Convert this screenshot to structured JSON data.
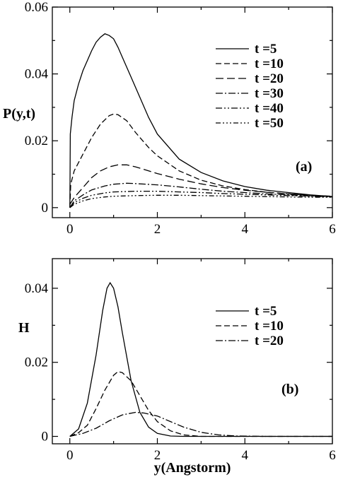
{
  "chart_data": [
    {
      "type": "line",
      "panel_label": "(a)",
      "xlabel": "",
      "ylabel": "P(y,t)",
      "xlim": [
        -0.4,
        6
      ],
      "ylim": [
        -0.003,
        0.06
      ],
      "xticks": [
        0,
        2,
        4,
        6
      ],
      "xtick_labels": [
        "0",
        "2",
        "4",
        "6"
      ],
      "yticks": [
        0,
        0.02,
        0.04,
        0.06
      ],
      "ytick_labels": [
        "0",
        "0.02",
        "0.04",
        "0.06"
      ],
      "legend_position": "top-right",
      "grid": false,
      "series": [
        {
          "name": "t =5",
          "dash": "solid",
          "points": [
            [
              0.0,
              0.0
            ],
            [
              0.01,
              0.022
            ],
            [
              0.05,
              0.027
            ],
            [
              0.1,
              0.032
            ],
            [
              0.2,
              0.037
            ],
            [
              0.3,
              0.041
            ],
            [
              0.4,
              0.044
            ],
            [
              0.5,
              0.047
            ],
            [
              0.6,
              0.0495
            ],
            [
              0.7,
              0.051
            ],
            [
              0.8,
              0.052
            ],
            [
              0.9,
              0.0515
            ],
            [
              1.0,
              0.0505
            ],
            [
              1.1,
              0.048
            ],
            [
              1.2,
              0.045
            ],
            [
              1.4,
              0.039
            ],
            [
              1.6,
              0.033
            ],
            [
              1.8,
              0.027
            ],
            [
              2.0,
              0.022
            ],
            [
              2.5,
              0.0145
            ],
            [
              3.0,
              0.0105
            ],
            [
              3.5,
              0.008
            ],
            [
              4.0,
              0.0063
            ],
            [
              4.5,
              0.0052
            ],
            [
              5.0,
              0.0045
            ],
            [
              5.5,
              0.0038
            ],
            [
              6.0,
              0.0033
            ]
          ]
        },
        {
          "name": "t =10",
          "dash": "8,4",
          "points": [
            [
              0.0,
              0.0
            ],
            [
              0.02,
              0.007
            ],
            [
              0.1,
              0.011
            ],
            [
              0.3,
              0.016
            ],
            [
              0.5,
              0.021
            ],
            [
              0.7,
              0.025
            ],
            [
              0.9,
              0.0275
            ],
            [
              1.0,
              0.028
            ],
            [
              1.1,
              0.0278
            ],
            [
              1.3,
              0.026
            ],
            [
              1.5,
              0.0225
            ],
            [
              1.8,
              0.018
            ],
            [
              2.0,
              0.0155
            ],
            [
              2.5,
              0.011
            ],
            [
              3.0,
              0.0082
            ],
            [
              3.5,
              0.0065
            ],
            [
              4.0,
              0.0054
            ],
            [
              4.5,
              0.0046
            ],
            [
              5.0,
              0.0041
            ],
            [
              5.5,
              0.0037
            ],
            [
              6.0,
              0.0033
            ]
          ]
        },
        {
          "name": "t =20",
          "dash": "11,5",
          "points": [
            [
              0.0,
              0.001
            ],
            [
              0.1,
              0.003
            ],
            [
              0.3,
              0.006
            ],
            [
              0.5,
              0.009
            ],
            [
              0.7,
              0.011
            ],
            [
              0.9,
              0.0122
            ],
            [
              1.1,
              0.0128
            ],
            [
              1.3,
              0.0128
            ],
            [
              1.5,
              0.0122
            ],
            [
              1.8,
              0.011
            ],
            [
              2.0,
              0.0102
            ],
            [
              2.5,
              0.0085
            ],
            [
              3.0,
              0.0071
            ],
            [
              3.5,
              0.006
            ],
            [
              4.0,
              0.0052
            ],
            [
              4.5,
              0.0046
            ],
            [
              5.0,
              0.0041
            ],
            [
              5.5,
              0.0037
            ],
            [
              6.0,
              0.0034
            ]
          ]
        },
        {
          "name": "t =30",
          "dash": "10,3,2,3",
          "points": [
            [
              0.0,
              0.0
            ],
            [
              0.1,
              0.002
            ],
            [
              0.3,
              0.0038
            ],
            [
              0.5,
              0.0053
            ],
            [
              0.8,
              0.0065
            ],
            [
              1.0,
              0.007
            ],
            [
              1.3,
              0.0073
            ],
            [
              1.5,
              0.0072
            ],
            [
              2.0,
              0.0068
            ],
            [
              2.5,
              0.0062
            ],
            [
              3.0,
              0.0055
            ],
            [
              3.5,
              0.0049
            ],
            [
              4.0,
              0.0045
            ],
            [
              4.5,
              0.0041
            ],
            [
              5.0,
              0.0038
            ],
            [
              5.5,
              0.0035
            ],
            [
              6.0,
              0.0032
            ]
          ]
        },
        {
          "name": "t =40",
          "dash": "9,3,2,3,2,3",
          "points": [
            [
              0.0,
              0.0
            ],
            [
              0.1,
              0.0015
            ],
            [
              0.3,
              0.0028
            ],
            [
              0.5,
              0.0037
            ],
            [
              0.8,
              0.0044
            ],
            [
              1.0,
              0.0047
            ],
            [
              1.5,
              0.0049
            ],
            [
              2.0,
              0.0049
            ],
            [
              2.5,
              0.0047
            ],
            [
              3.0,
              0.0045
            ],
            [
              3.5,
              0.0042
            ],
            [
              4.0,
              0.004
            ],
            [
              4.5,
              0.0038
            ],
            [
              5.0,
              0.0036
            ],
            [
              5.5,
              0.0034
            ],
            [
              6.0,
              0.0032
            ]
          ]
        },
        {
          "name": "t =50",
          "dash": "7,3,2,3,2,3,2,3",
          "points": [
            [
              0.0,
              0.0
            ],
            [
              0.1,
              0.001
            ],
            [
              0.3,
              0.002
            ],
            [
              0.5,
              0.0027
            ],
            [
              0.8,
              0.0032
            ],
            [
              1.0,
              0.0034
            ],
            [
              1.5,
              0.0036
            ],
            [
              2.0,
              0.0037
            ],
            [
              2.5,
              0.0037
            ],
            [
              3.0,
              0.0036
            ],
            [
              3.5,
              0.0035
            ],
            [
              4.0,
              0.0034
            ],
            [
              4.5,
              0.0033
            ],
            [
              5.0,
              0.0032
            ],
            [
              5.5,
              0.0031
            ],
            [
              6.0,
              0.0031
            ]
          ]
        }
      ]
    },
    {
      "type": "line",
      "panel_label": "(b)",
      "xlabel": "y(Angstorm)",
      "ylabel": "H",
      "xlim": [
        -0.4,
        6
      ],
      "ylim": [
        -0.002,
        0.048
      ],
      "xticks": [
        0,
        2,
        4,
        6
      ],
      "xtick_labels": [
        "0",
        "2",
        "4",
        "6"
      ],
      "yticks": [
        0,
        0.02,
        0.04
      ],
      "ytick_labels": [
        "0",
        "0.02",
        "0.04"
      ],
      "legend_position": "top-right",
      "grid": false,
      "series": [
        {
          "name": "t =5",
          "dash": "solid",
          "points": [
            [
              0.0,
              0.0
            ],
            [
              0.2,
              0.002
            ],
            [
              0.4,
              0.009
            ],
            [
              0.6,
              0.022
            ],
            [
              0.75,
              0.034
            ],
            [
              0.85,
              0.04
            ],
            [
              0.92,
              0.0415
            ],
            [
              1.0,
              0.04
            ],
            [
              1.1,
              0.035
            ],
            [
              1.2,
              0.028
            ],
            [
              1.4,
              0.015
            ],
            [
              1.6,
              0.0065
            ],
            [
              1.8,
              0.0025
            ],
            [
              2.0,
              0.0008
            ],
            [
              2.3,
              0.0001
            ],
            [
              2.6,
              0.0
            ],
            [
              3.0,
              0.0
            ],
            [
              4.0,
              0.0
            ],
            [
              5.0,
              0.0
            ],
            [
              6.0,
              0.0
            ]
          ]
        },
        {
          "name": "t =10",
          "dash": "8,4",
          "points": [
            [
              0.0,
              0.0
            ],
            [
              0.2,
              0.001
            ],
            [
              0.4,
              0.003
            ],
            [
              0.6,
              0.0075
            ],
            [
              0.8,
              0.0125
            ],
            [
              1.0,
              0.0165
            ],
            [
              1.1,
              0.0175
            ],
            [
              1.2,
              0.0172
            ],
            [
              1.4,
              0.015
            ],
            [
              1.6,
              0.011
            ],
            [
              1.8,
              0.007
            ],
            [
              2.0,
              0.004
            ],
            [
              2.3,
              0.0015
            ],
            [
              2.6,
              0.0004
            ],
            [
              3.0,
              0.0
            ],
            [
              4.0,
              0.0
            ],
            [
              5.0,
              0.0
            ],
            [
              6.0,
              0.0
            ]
          ]
        },
        {
          "name": "t =20",
          "dash": "10,3,2,3",
          "points": [
            [
              0.0,
              0.0
            ],
            [
              0.3,
              0.0008
            ],
            [
              0.6,
              0.0022
            ],
            [
              0.9,
              0.0042
            ],
            [
              1.2,
              0.0058
            ],
            [
              1.5,
              0.0065
            ],
            [
              1.7,
              0.0063
            ],
            [
              2.0,
              0.0055
            ],
            [
              2.3,
              0.004
            ],
            [
              2.6,
              0.0025
            ],
            [
              3.0,
              0.0011
            ],
            [
              3.4,
              0.0004
            ],
            [
              3.8,
              0.0001
            ],
            [
              4.5,
              0.0
            ],
            [
              6.0,
              0.0
            ]
          ]
        }
      ]
    }
  ]
}
